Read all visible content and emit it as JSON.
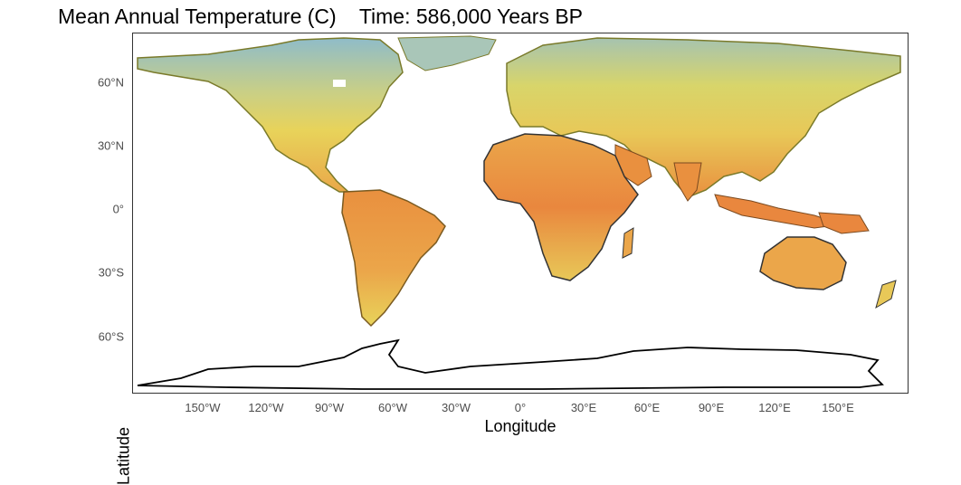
{
  "title": "Mean Annual Temperature (C)    Time: 586,000 Years BP",
  "axes": {
    "xlabel": "Longitude",
    "ylabel": "Latitude",
    "x_ticks": [
      "150°W",
      "120°W",
      "90°W",
      "60°W",
      "30°W",
      "0°",
      "30°E",
      "60°E",
      "90°E",
      "120°E",
      "150°E"
    ],
    "x_tick_values": [
      -150,
      -120,
      -90,
      -60,
      -30,
      0,
      30,
      60,
      90,
      120,
      150
    ],
    "y_ticks": [
      "60°N",
      "30°N",
      "0°",
      "30°S",
      "60°S"
    ],
    "y_tick_values": [
      60,
      30,
      0,
      -30,
      -60
    ]
  },
  "map": {
    "colors": {
      "cold": "#8fbcc9",
      "cool": "#b9c98c",
      "mild": "#e8d35a",
      "warm": "#eba64a",
      "hot": "#e9873e",
      "coast": "#000000"
    }
  }
}
